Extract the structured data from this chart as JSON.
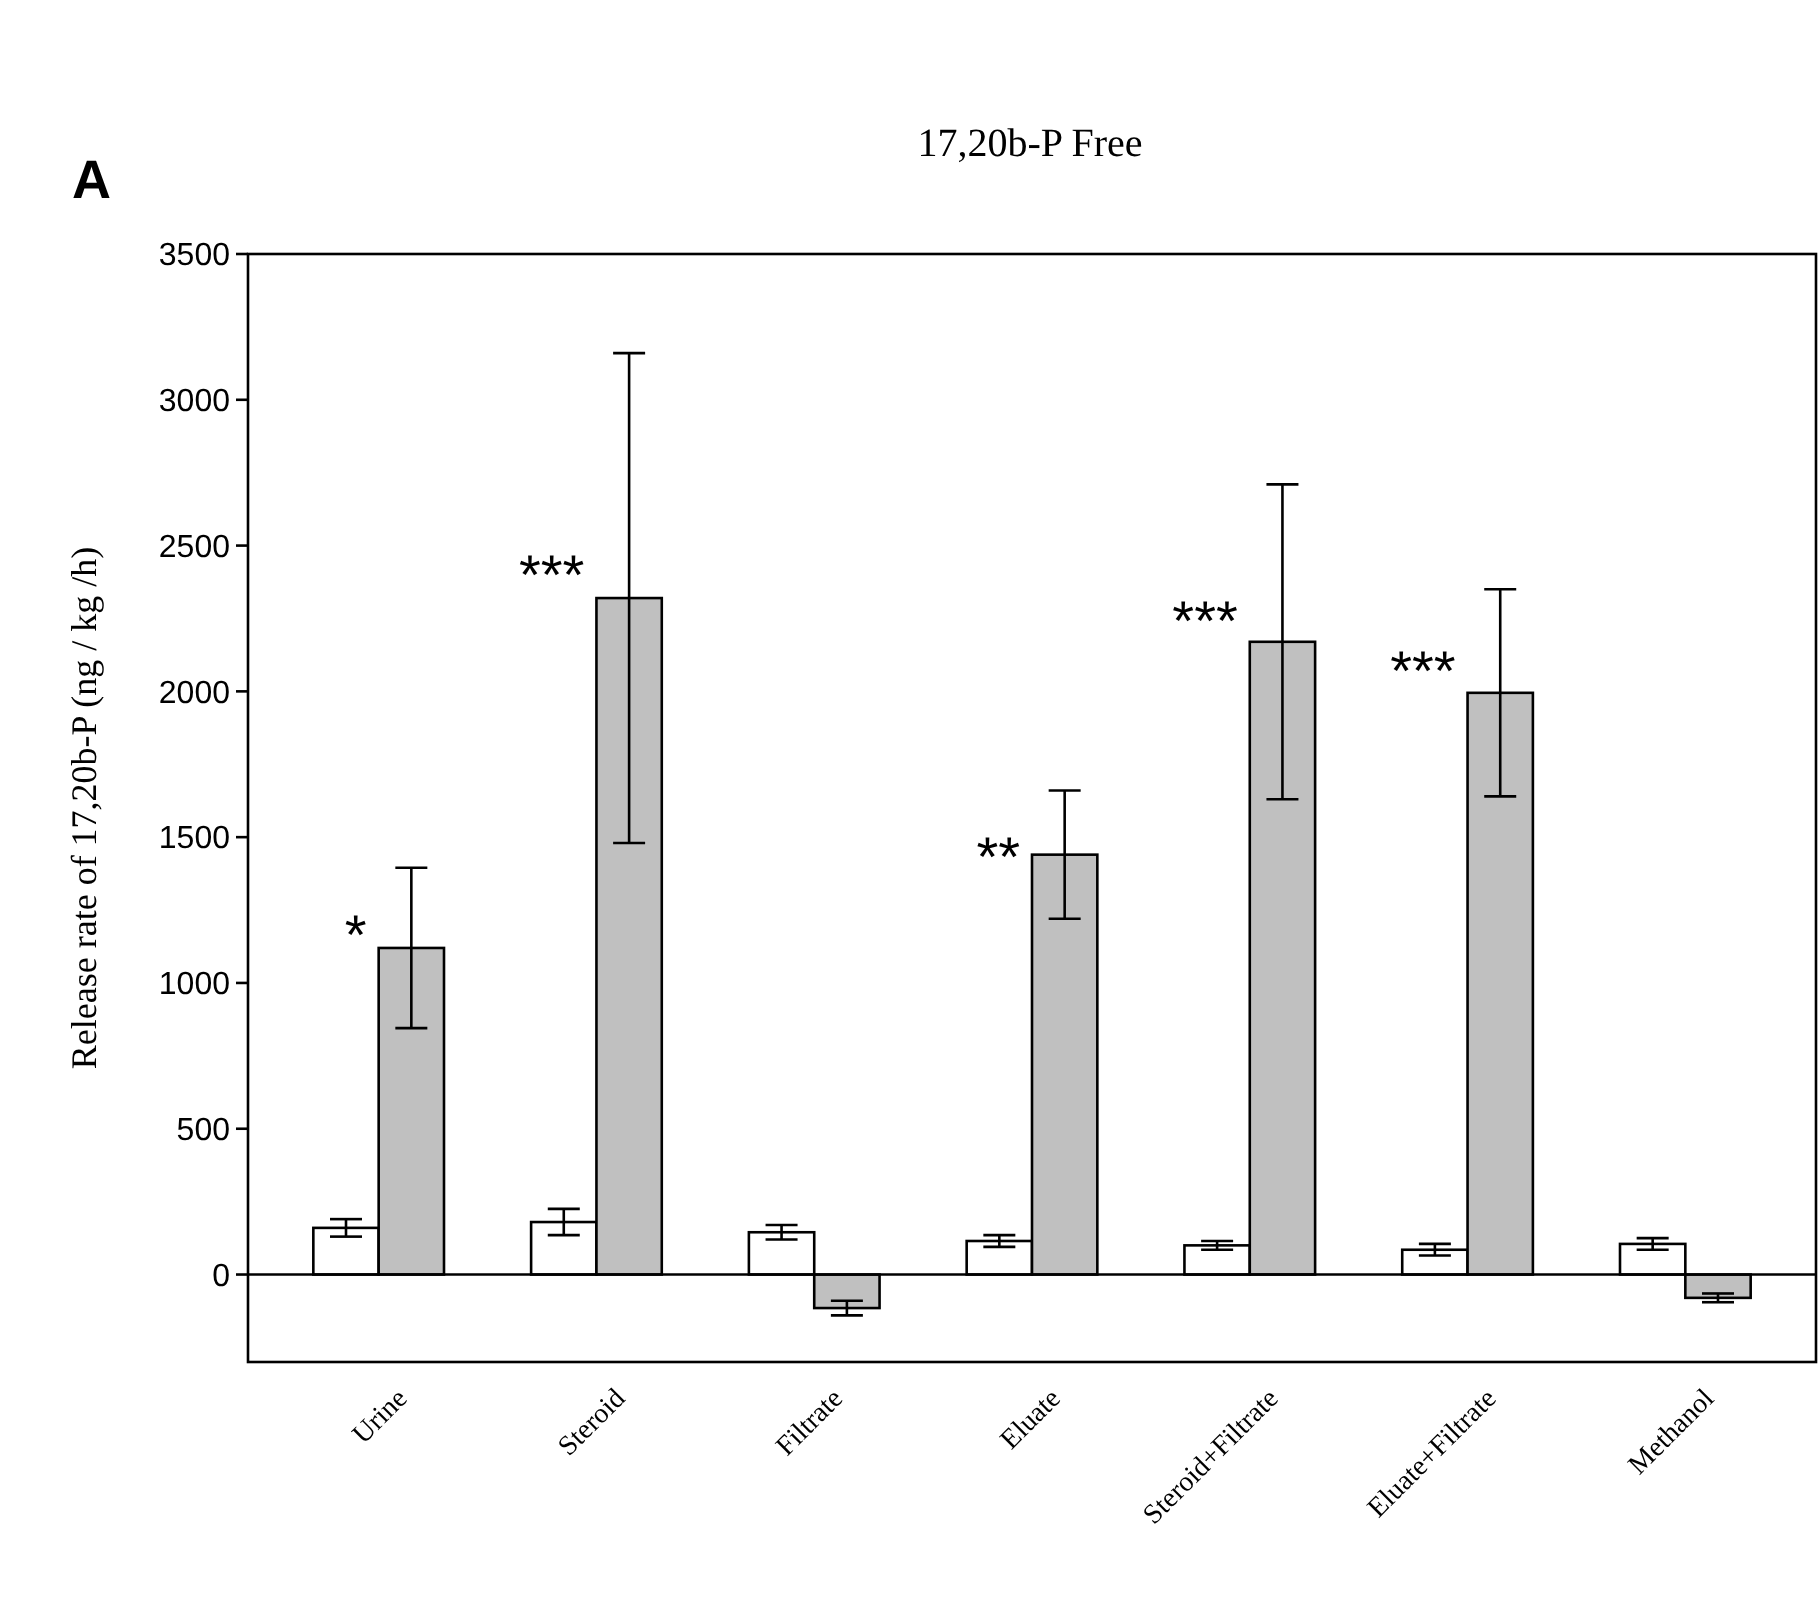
{
  "chart_data": {
    "type": "bar",
    "title": "17,20b-P Free",
    "subtitle": "A",
    "ylabel": "Release rate of 17,20b-P (ng / kg /h)",
    "categories": [
      "Urine",
      "Steroid",
      "Filtrate",
      "Eluate",
      "Steroid+Filtrate",
      "Eluate+Filtrate",
      "Methanol"
    ],
    "series": [
      {
        "color": "#ffffff",
        "values": [
          160,
          180,
          145,
          115,
          100,
          85,
          105
        ],
        "errors": [
          30,
          45,
          25,
          20,
          15,
          20,
          20
        ]
      },
      {
        "color": "#c0c0c0",
        "values": [
          1120,
          2320,
          -115,
          1440,
          2170,
          1995,
          -80
        ],
        "errors": [
          275,
          840,
          25,
          220,
          540,
          355,
          15
        ]
      }
    ],
    "ylim": [
      -300,
      3500
    ],
    "yticks": [
      0,
      500,
      1000,
      1500,
      2000,
      2500,
      3000,
      3500
    ],
    "ref_lines": [
      {
        "axis": "y",
        "value": 0,
        "color": "#000000"
      }
    ],
    "annotations": [
      {
        "text": "*",
        "x": "Urine",
        "y": 1235
      },
      {
        "text": "***",
        "x": "Steroid",
        "y": 2470
      },
      {
        "text": "**",
        "x": "Eluate",
        "y": 1500
      },
      {
        "text": "***",
        "x": "Steroid+Filtrate",
        "y": 2310
      },
      {
        "text": "***",
        "x": "Eluate+Filtrate",
        "y": 2140
      }
    ]
  }
}
